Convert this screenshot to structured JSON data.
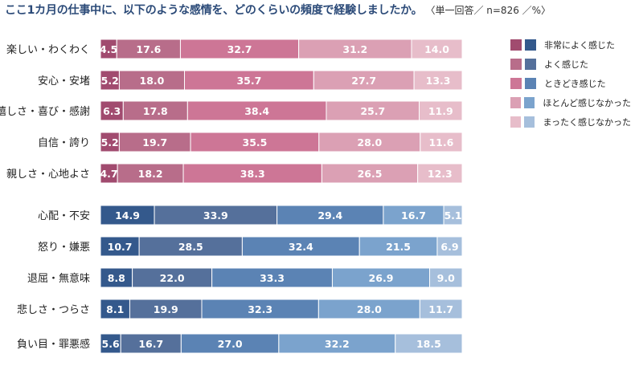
{
  "header": {
    "title": "ここ1カ月の仕事中に、以下のような感情を、どのくらいの頻度で経験しましたか。",
    "note": "〈単一回答／ n=826 ／%〉"
  },
  "legend": {
    "items": [
      {
        "label": "非常によく感じた",
        "pos_color": "#a14b6f",
        "neg_color": "#34598c"
      },
      {
        "label": "よく感じた",
        "pos_color": "#b86d8a",
        "neg_color": "#55709b"
      },
      {
        "label": "ときどき感じた",
        "pos_color": "#cd7696",
        "neg_color": "#5b83b4"
      },
      {
        "label": "ほとんど感じなかった",
        "pos_color": "#dba0b4",
        "neg_color": "#7ba3cd"
      },
      {
        "label": "まったく感じなかった",
        "pos_color": "#e7bdca",
        "neg_color": "#a6bfdc"
      }
    ]
  },
  "chart_data": {
    "type": "bar",
    "orientation": "horizontal-stacked-100",
    "title": "ここ1カ月の仕事中に、以下のような感情を、どのくらいの頻度で経験しましたか。",
    "unit": "%",
    "n": 826,
    "series_names": [
      "非常によく感じた",
      "よく感じた",
      "ときどき感じた",
      "ほとんど感じなかった",
      "まったく感じなかった"
    ],
    "groups": [
      {
        "name": "positive",
        "colors": [
          "#a14b6f",
          "#b86d8a",
          "#cd7696",
          "#dba0b4",
          "#e7bdca"
        ],
        "rows": [
          {
            "label": "楽しい・わくわく",
            "values": [
              4.5,
              17.6,
              32.7,
              31.2,
              14.0
            ]
          },
          {
            "label": "安心・安堵",
            "values": [
              5.2,
              18.0,
              35.7,
              27.7,
              13.3
            ]
          },
          {
            "label": "嬉しさ・喜び・感謝",
            "values": [
              6.3,
              17.8,
              38.4,
              25.7,
              11.9
            ]
          },
          {
            "label": "自信・誇り",
            "values": [
              5.2,
              19.7,
              35.5,
              28.0,
              11.6
            ]
          },
          {
            "label": "親しさ・心地よさ",
            "values": [
              4.7,
              18.2,
              38.3,
              26.5,
              12.3
            ]
          }
        ]
      },
      {
        "name": "negative",
        "colors": [
          "#34598c",
          "#55709b",
          "#5b83b4",
          "#7ba3cd",
          "#a6bfdc"
        ],
        "rows": [
          {
            "label": "心配・不安",
            "values": [
              14.9,
              33.9,
              29.4,
              16.7,
              5.1
            ]
          },
          {
            "label": "怒り・嫌悪",
            "values": [
              10.7,
              28.5,
              32.4,
              21.5,
              6.9
            ]
          },
          {
            "label": "退屈・無意味",
            "values": [
              8.8,
              22.0,
              33.3,
              26.9,
              9.0
            ]
          },
          {
            "label": "悲しさ・つらさ",
            "values": [
              8.1,
              19.9,
              32.3,
              28.0,
              11.7
            ]
          },
          {
            "label": "負い目・罪悪感",
            "values": [
              5.6,
              16.7,
              27.0,
              32.2,
              18.5
            ]
          }
        ]
      }
    ]
  }
}
